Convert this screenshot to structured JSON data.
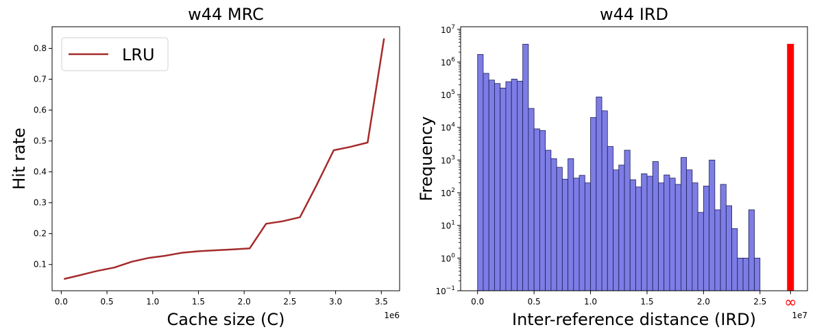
{
  "chart_data": [
    {
      "type": "line",
      "title": "w44 MRC",
      "xlabel": "Cache size (C)",
      "ylabel": "Hit rate",
      "x_offset_label": "1e6",
      "xlim": [
        -0.1,
        3.7
      ],
      "ylim": [
        0.015,
        0.87
      ],
      "x_ticks": [
        0.0,
        0.5,
        1.0,
        1.5,
        2.0,
        2.5,
        3.0,
        3.5
      ],
      "x_tick_labels": [
        "0.0",
        "0.5",
        "1.0",
        "1.5",
        "2.0",
        "2.5",
        "3.0",
        "3.5"
      ],
      "y_ticks": [
        0.1,
        0.2,
        0.3,
        0.4,
        0.5,
        0.6,
        0.7,
        0.8
      ],
      "y_tick_labels": [
        "0.1",
        "0.2",
        "0.3",
        "0.4",
        "0.5",
        "0.6",
        "0.7",
        "0.8"
      ],
      "legend": "top-left",
      "grid": false,
      "series": [
        {
          "name": "LRU",
          "color": "#a52a2a",
          "x": [
            0.03,
            0.2,
            0.39,
            0.58,
            0.77,
            0.95,
            1.13,
            1.32,
            1.5,
            1.69,
            1.87,
            2.06,
            2.24,
            2.42,
            2.61,
            2.79,
            2.98,
            3.16,
            3.35,
            3.53
          ],
          "y": [
            0.053,
            0.065,
            0.079,
            0.09,
            0.109,
            0.121,
            0.128,
            0.138,
            0.143,
            0.146,
            0.149,
            0.152,
            0.232,
            0.24,
            0.253,
            0.356,
            0.47,
            0.481,
            0.495,
            0.832
          ]
        }
      ]
    },
    {
      "type": "bar",
      "title": "w44 IRD",
      "xlabel": "Inter-reference distance (IRD)",
      "ylabel": "Frequency",
      "x_offset_label": "1e7",
      "y_scale": "log",
      "xlim": [
        -0.15,
        2.92
      ],
      "ylim": [
        0.1,
        12000000
      ],
      "x_ticks": [
        0.0,
        0.5,
        1.0,
        1.5,
        2.0,
        2.5
      ],
      "x_tick_labels": [
        "0.0",
        "0.5",
        "1.0",
        "1.5",
        "2.0",
        "2.5"
      ],
      "y_ticks": [
        0.1,
        1,
        10,
        100,
        1000,
        10000,
        100000,
        1000000,
        10000000
      ],
      "y_tick_labels": [
        [
          "10",
          "−1"
        ],
        [
          "10",
          "0"
        ],
        [
          "10",
          "1"
        ],
        [
          "10",
          "2"
        ],
        [
          "10",
          "3"
        ],
        [
          "10",
          "4"
        ],
        [
          "10",
          "5"
        ],
        [
          "10",
          "6"
        ],
        [
          "10",
          "7"
        ]
      ],
      "bar_color": "#6666e0",
      "bar_edge": "#1e1e5a",
      "bin_width": 0.05,
      "bin_start": [
        0.0,
        0.05,
        0.1,
        0.15,
        0.2,
        0.25,
        0.3,
        0.35,
        0.4,
        0.45,
        0.5,
        0.55,
        0.6,
        0.65,
        0.7,
        0.75,
        0.8,
        0.85,
        0.9,
        0.95,
        1.0,
        1.05,
        1.1,
        1.15,
        1.2,
        1.25,
        1.3,
        1.35,
        1.4,
        1.45,
        1.5,
        1.55,
        1.6,
        1.65,
        1.7,
        1.75,
        1.8,
        1.85,
        1.9,
        1.95,
        2.0,
        2.05,
        2.1,
        2.15,
        2.2,
        2.25,
        2.3,
        2.35,
        2.4,
        2.45
      ],
      "frequencies": [
        1700000,
        450000,
        280000,
        220000,
        160000,
        250000,
        300000,
        260000,
        3500000,
        38000,
        9000,
        8000,
        2000,
        1100,
        600,
        260,
        1100,
        280,
        340,
        200,
        20000,
        85000,
        32000,
        2600,
        500,
        700,
        2000,
        250,
        150,
        380,
        320,
        900,
        200,
        350,
        280,
        180,
        1200,
        500,
        200,
        25,
        160,
        1000,
        30,
        180,
        40,
        8,
        1,
        1,
        30,
        1
      ],
      "inf_label": "∞",
      "inf_x": 2.77,
      "inf_value": 3600000,
      "inf_color": "#ff0000"
    }
  ]
}
